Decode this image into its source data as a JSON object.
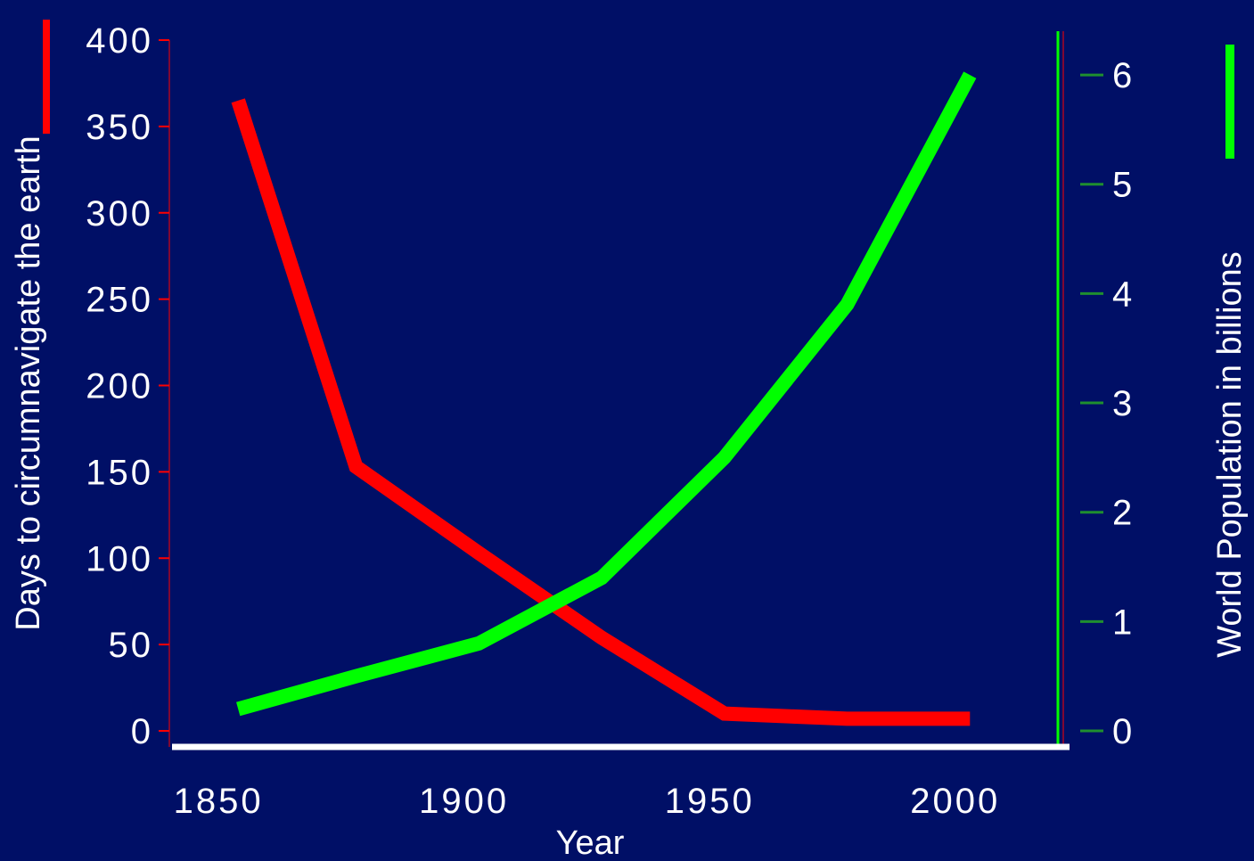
{
  "chart_data": {
    "type": "line",
    "xlabel": "Year",
    "ylabel_left": "Days to circumnavigate the earth",
    "ylabel_right": "World Population in billions",
    "x_ticks": [
      "1850",
      "1900",
      "1950",
      "2000"
    ],
    "x_tick_values": [
      1850,
      1900,
      1950,
      2000
    ],
    "xlim": [
      1840,
      2022
    ],
    "y_left_ticks": [
      0,
      50,
      100,
      150,
      200,
      250,
      300,
      350,
      400
    ],
    "y_left_lim": [
      0,
      400
    ],
    "y_right_ticks": [
      0,
      1,
      2,
      3,
      4,
      5,
      6
    ],
    "y_right_lim": [
      0,
      6.4
    ],
    "grid": false,
    "series": [
      {
        "axis": "left",
        "color": "#ff0000",
        "x": [
          1854,
          1878,
          1903,
          1928,
          1953,
          1978,
          2003
        ],
        "values": [
          365,
          153,
          103,
          54,
          10,
          7,
          7
        ]
      },
      {
        "axis": "right",
        "color": "#00ff00",
        "x": [
          1854,
          1878,
          1903,
          1928,
          1953,
          1978,
          2003
        ],
        "values": [
          0.2,
          0.5,
          0.8,
          1.4,
          2.5,
          3.9,
          6.0
        ]
      }
    ]
  }
}
